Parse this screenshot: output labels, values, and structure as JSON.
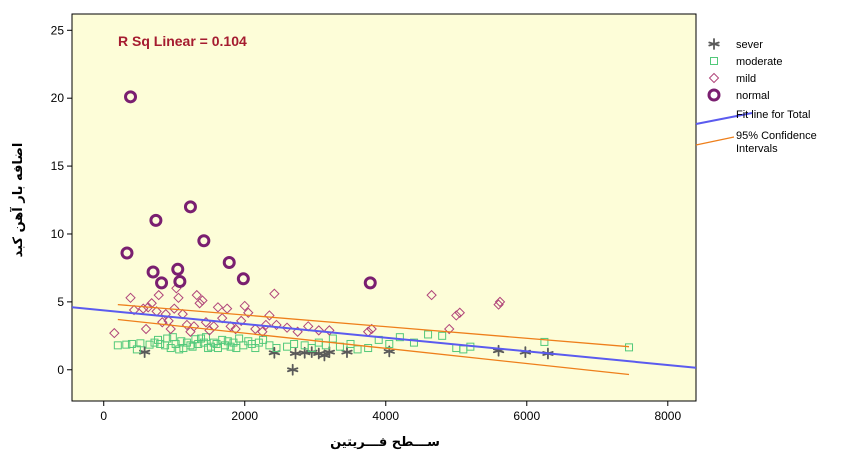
{
  "chart_data": {
    "type": "scatter",
    "xlabel": "ســـطح فـــريتين",
    "ylabel": "اضافه بار آهن كبد",
    "xlim": [
      -450,
      8400
    ],
    "ylim": [
      -2.3,
      26.2
    ],
    "x_ticks": [
      0,
      2000,
      4000,
      6000,
      8000
    ],
    "y_ticks": [
      0,
      5,
      10,
      15,
      20,
      25
    ],
    "grid": false,
    "legend_position": "right",
    "annotation": {
      "text": "R Sq Linear = 0.104",
      "color": "#a51c30"
    },
    "colors": {
      "background": "#fdfdd8",
      "sever": "#5a5a5a",
      "moderate": "#52c97a",
      "mild": "#b0457a",
      "normal": "#7a1f70",
      "fit_line": "#5b5bef",
      "ci_line": "#ee7f1b"
    },
    "series": [
      {
        "name": "sever",
        "marker": "star",
        "points": [
          [
            580,
            1.3
          ],
          [
            2420,
            1.25
          ],
          [
            2680,
            0.0
          ],
          [
            2720,
            1.2
          ],
          [
            2850,
            1.25
          ],
          [
            2950,
            1.3
          ],
          [
            3050,
            1.2
          ],
          [
            3130,
            1.05
          ],
          [
            3200,
            1.3
          ],
          [
            3450,
            1.3
          ],
          [
            4050,
            1.35
          ],
          [
            5600,
            1.4
          ],
          [
            5980,
            1.3
          ],
          [
            6300,
            1.2
          ]
        ]
      },
      {
        "name": "moderate",
        "marker": "square",
        "points": [
          [
            200,
            1.8
          ],
          [
            320,
            1.85
          ],
          [
            400,
            1.9
          ],
          [
            470,
            1.5
          ],
          [
            520,
            1.95
          ],
          [
            650,
            1.85
          ],
          [
            720,
            2.0
          ],
          [
            770,
            2.2
          ],
          [
            800,
            1.9
          ],
          [
            870,
            1.8
          ],
          [
            900,
            2.3
          ],
          [
            950,
            1.6
          ],
          [
            980,
            2.4
          ],
          [
            1020,
            1.9
          ],
          [
            1070,
            1.5
          ],
          [
            1100,
            2.1
          ],
          [
            1130,
            1.6
          ],
          [
            1180,
            2.0
          ],
          [
            1230,
            1.8
          ],
          [
            1260,
            1.7
          ],
          [
            1300,
            2.25
          ],
          [
            1340,
            1.9
          ],
          [
            1380,
            2.3
          ],
          [
            1420,
            2.0
          ],
          [
            1450,
            2.4
          ],
          [
            1480,
            1.6
          ],
          [
            1520,
            1.7
          ],
          [
            1560,
            2.0
          ],
          [
            1600,
            1.9
          ],
          [
            1620,
            1.6
          ],
          [
            1680,
            2.2
          ],
          [
            1720,
            1.8
          ],
          [
            1760,
            2.1
          ],
          [
            1800,
            1.7
          ],
          [
            1840,
            2.0
          ],
          [
            1880,
            1.6
          ],
          [
            1920,
            2.3
          ],
          [
            1980,
            1.8
          ],
          [
            2050,
            2.1
          ],
          [
            2100,
            1.9
          ],
          [
            2150,
            1.6
          ],
          [
            2200,
            2.0
          ],
          [
            2260,
            2.2
          ],
          [
            2350,
            1.8
          ],
          [
            2450,
            1.6
          ],
          [
            2600,
            1.7
          ],
          [
            2700,
            1.9
          ],
          [
            2850,
            1.8
          ],
          [
            2950,
            1.6
          ],
          [
            3050,
            2.0
          ],
          [
            3150,
            1.8
          ],
          [
            3250,
            2.3
          ],
          [
            3350,
            1.7
          ],
          [
            3500,
            1.9
          ],
          [
            3600,
            1.5
          ],
          [
            3750,
            1.6
          ],
          [
            3900,
            2.2
          ],
          [
            4050,
            1.9
          ],
          [
            4200,
            2.4
          ],
          [
            4400,
            2.0
          ],
          [
            4600,
            2.6
          ],
          [
            4800,
            2.5
          ],
          [
            5000,
            1.6
          ],
          [
            5100,
            1.5
          ],
          [
            5200,
            1.7
          ],
          [
            6250,
            2.05
          ],
          [
            7450,
            1.65
          ]
        ]
      },
      {
        "name": "mild",
        "marker": "diamond",
        "points": [
          [
            150,
            2.7
          ],
          [
            380,
            5.3
          ],
          [
            430,
            4.4
          ],
          [
            560,
            4.5
          ],
          [
            600,
            3.0
          ],
          [
            630,
            4.6
          ],
          [
            680,
            4.9
          ],
          [
            750,
            4.3
          ],
          [
            780,
            5.5
          ],
          [
            830,
            3.5
          ],
          [
            880,
            4.1
          ],
          [
            920,
            3.6
          ],
          [
            950,
            3.0
          ],
          [
            1000,
            4.5
          ],
          [
            1030,
            6.0
          ],
          [
            1060,
            5.3
          ],
          [
            1120,
            4.1
          ],
          [
            1180,
            3.3
          ],
          [
            1230,
            2.8
          ],
          [
            1280,
            3.2
          ],
          [
            1320,
            5.5
          ],
          [
            1360,
            4.9
          ],
          [
            1400,
            5.1
          ],
          [
            1450,
            3.5
          ],
          [
            1500,
            2.9
          ],
          [
            1560,
            3.2
          ],
          [
            1620,
            4.6
          ],
          [
            1680,
            3.8
          ],
          [
            1750,
            4.5
          ],
          [
            1800,
            3.2
          ],
          [
            1870,
            3.0
          ],
          [
            1950,
            3.6
          ],
          [
            2000,
            4.7
          ],
          [
            2050,
            4.2
          ],
          [
            2150,
            3.0
          ],
          [
            2250,
            2.8
          ],
          [
            2300,
            3.3
          ],
          [
            2350,
            4.0
          ],
          [
            2420,
            5.6
          ],
          [
            2450,
            3.3
          ],
          [
            2600,
            3.1
          ],
          [
            2750,
            2.8
          ],
          [
            2900,
            3.2
          ],
          [
            3050,
            2.9
          ],
          [
            3200,
            2.9
          ],
          [
            3750,
            2.8
          ],
          [
            3800,
            3.0
          ],
          [
            4650,
            5.5
          ],
          [
            4900,
            3.0
          ],
          [
            5000,
            4.0
          ],
          [
            5050,
            4.2
          ],
          [
            5600,
            4.8
          ],
          [
            5620,
            5.0
          ]
        ]
      },
      {
        "name": "normal",
        "marker": "circle",
        "points": [
          [
            380,
            20.1
          ],
          [
            330,
            8.6
          ],
          [
            740,
            11.0
          ],
          [
            700,
            7.2
          ],
          [
            820,
            6.4
          ],
          [
            1050,
            7.4
          ],
          [
            1080,
            6.5
          ],
          [
            1230,
            12.0
          ],
          [
            1420,
            9.5
          ],
          [
            1780,
            7.9
          ],
          [
            1980,
            6.7
          ],
          [
            3780,
            6.4
          ]
        ]
      }
    ],
    "fit_line": {
      "name": "Fit line for Total",
      "x": [
        -450,
        8400
      ],
      "y": [
        4.6,
        0.15
      ]
    },
    "confidence_intervals": {
      "name": "95% Confidence Intervals",
      "upper": {
        "x": [
          200,
          7450
        ],
        "y": [
          4.8,
          1.7
        ]
      },
      "lower": {
        "x": [
          200,
          7450
        ],
        "y": [
          3.7,
          -0.35
        ]
      }
    }
  }
}
